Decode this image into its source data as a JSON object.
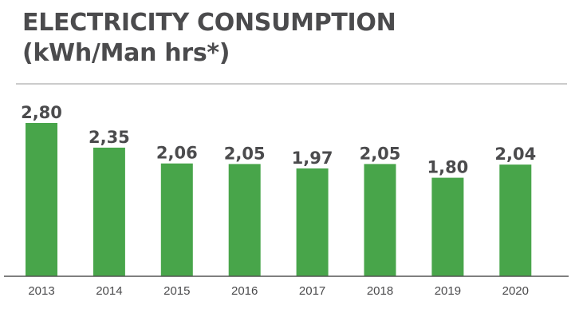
{
  "title_line1": "ELECTRICITY CONSUMPTION",
  "title_line2": "(kWh/Man hrs*)",
  "chart_data": {
    "type": "bar",
    "title": "ELECTRICITY CONSUMPTION (kWh/Man hrs*)",
    "xlabel": "",
    "ylabel": "",
    "categories": [
      "2013",
      "2014",
      "2015",
      "2016",
      "2017",
      "2018",
      "2019",
      "2020"
    ],
    "values": [
      2.8,
      2.35,
      2.06,
      2.05,
      1.97,
      2.05,
      1.8,
      2.04
    ],
    "value_labels": [
      "2,80",
      "2,35",
      "2,06",
      "2,05",
      "1,97",
      "2,05",
      "1,80",
      "2,04"
    ],
    "ylim": [
      0,
      2.8
    ],
    "grid": false,
    "legend": "none",
    "bar_color": "#48a54a",
    "label_color": "#4b4b4d",
    "axis_color": "#555555"
  }
}
